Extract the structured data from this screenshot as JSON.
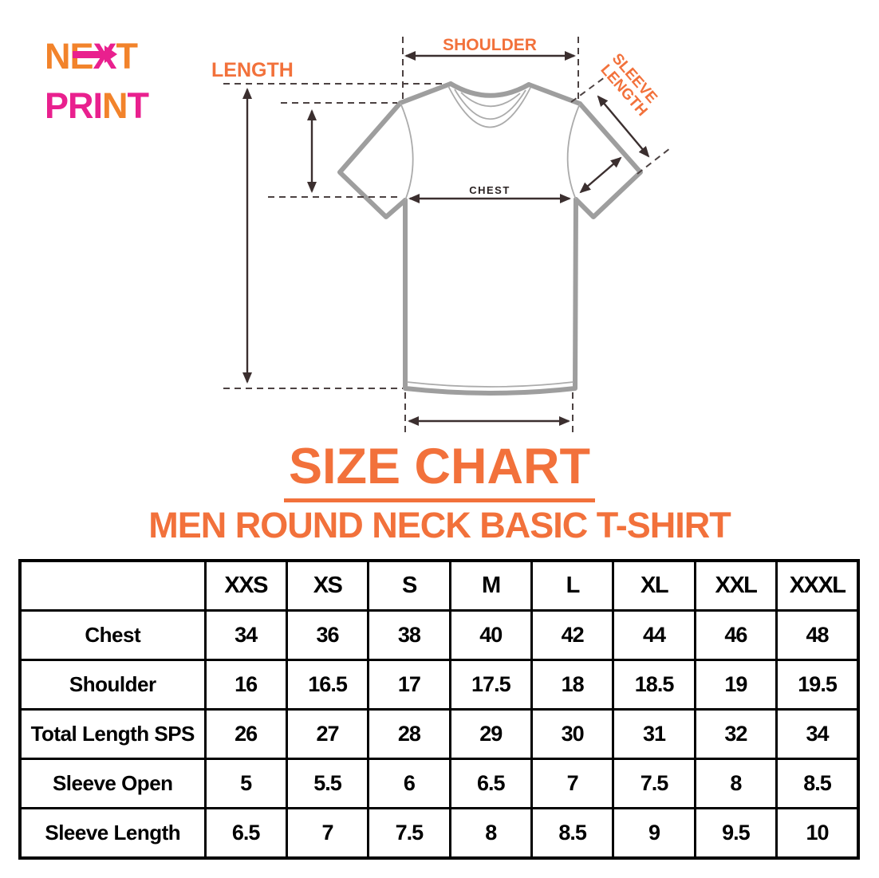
{
  "logo": {
    "line1": {
      "ne": "NE",
      "x": "X",
      "t": "T"
    },
    "line2": {
      "pri": "PRI",
      "n": "N",
      "t": "T"
    }
  },
  "colors": {
    "accent_orange": "#F2713B",
    "logo_orange": "#F2832B",
    "logo_pink": "#E9208E",
    "shirt_outline_gray": "#9e9e9e",
    "measurement_line": "#3b2f2f",
    "table_border": "#000000"
  },
  "diagram": {
    "labels": {
      "length": "LENGTH",
      "shoulder": "SHOULDER",
      "sleeve_line1": "SLEEVE",
      "sleeve_line2": "LENGTH",
      "chest": "CHEST"
    }
  },
  "title": "SIZE CHART",
  "subtitle": "MEN ROUND NECK BASIC T-SHIRT",
  "table": {
    "header": [
      "",
      "XXS",
      "XS",
      "S",
      "M",
      "L",
      "XL",
      "XXL",
      "XXXL"
    ],
    "rows": [
      {
        "label": "Chest",
        "values": [
          "34",
          "36",
          "38",
          "40",
          "42",
          "44",
          "46",
          "48"
        ]
      },
      {
        "label": "Shoulder",
        "values": [
          "16",
          "16.5",
          "17",
          "17.5",
          "18",
          "18.5",
          "19",
          "19.5"
        ]
      },
      {
        "label": "Total Length SPS",
        "values": [
          "26",
          "27",
          "28",
          "29",
          "30",
          "31",
          "32",
          "34"
        ]
      },
      {
        "label": "Sleeve Open",
        "values": [
          "5",
          "5.5",
          "6",
          "6.5",
          "7",
          "7.5",
          "8",
          "8.5"
        ]
      },
      {
        "label": "Sleeve Length",
        "values": [
          "6.5",
          "7",
          "7.5",
          "8",
          "8.5",
          "9",
          "9.5",
          "10"
        ]
      }
    ]
  },
  "chart_data": {
    "type": "table",
    "title": "SIZE CHART",
    "subtitle": "MEN ROUND NECK BASIC T-SHIRT",
    "columns": [
      "XXS",
      "XS",
      "S",
      "M",
      "L",
      "XL",
      "XXL",
      "XXXL"
    ],
    "series": [
      {
        "name": "Chest",
        "values": [
          34,
          36,
          38,
          40,
          42,
          44,
          46,
          48
        ]
      },
      {
        "name": "Shoulder",
        "values": [
          16,
          16.5,
          17,
          17.5,
          18,
          18.5,
          19,
          19.5
        ]
      },
      {
        "name": "Total Length SPS",
        "values": [
          26,
          27,
          28,
          29,
          30,
          31,
          32,
          34
        ]
      },
      {
        "name": "Sleeve Open",
        "values": [
          5,
          5.5,
          6,
          6.5,
          7,
          7.5,
          8,
          8.5
        ]
      },
      {
        "name": "Sleeve Length",
        "values": [
          6.5,
          7,
          7.5,
          8,
          8.5,
          9,
          9.5,
          10
        ]
      }
    ]
  }
}
